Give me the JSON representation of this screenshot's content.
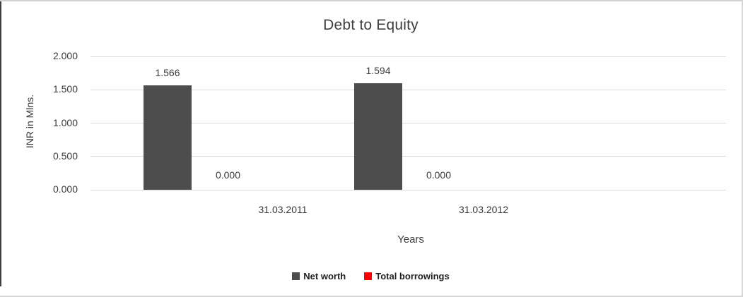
{
  "chart_data": {
    "type": "bar",
    "title": "Debt to Equity",
    "xlabel": "Years",
    "ylabel": "INR in Mlns.",
    "categories": [
      "31.03.2011",
      "31.03.2012"
    ],
    "series": [
      {
        "name": "Net worth",
        "color": "#4d4d4d",
        "values": [
          1.566,
          1.594
        ],
        "data_labels": [
          "1.566",
          "1.594"
        ]
      },
      {
        "name": "Total borrowings",
        "color": "#ff0000",
        "values": [
          0.0,
          0.0
        ],
        "data_labels": [
          "0.000",
          "0.000"
        ]
      }
    ],
    "yaxis": {
      "ylim": [
        0,
        2
      ],
      "ticks": [
        {
          "label": "0.000",
          "value": 0.0
        },
        {
          "label": "0.500",
          "value": 0.5
        },
        {
          "label": "1.000",
          "value": 1.0
        },
        {
          "label": "1.500",
          "value": 1.5
        },
        {
          "label": "2.000",
          "value": 2.0
        }
      ]
    },
    "grid": true,
    "legend_position": "bottom",
    "colors": {
      "gridline": "#d9d9d9",
      "text": "#3a3a3a",
      "net_worth_bar": "#4d4d4d",
      "total_borrowings": "#ff0000"
    }
  }
}
